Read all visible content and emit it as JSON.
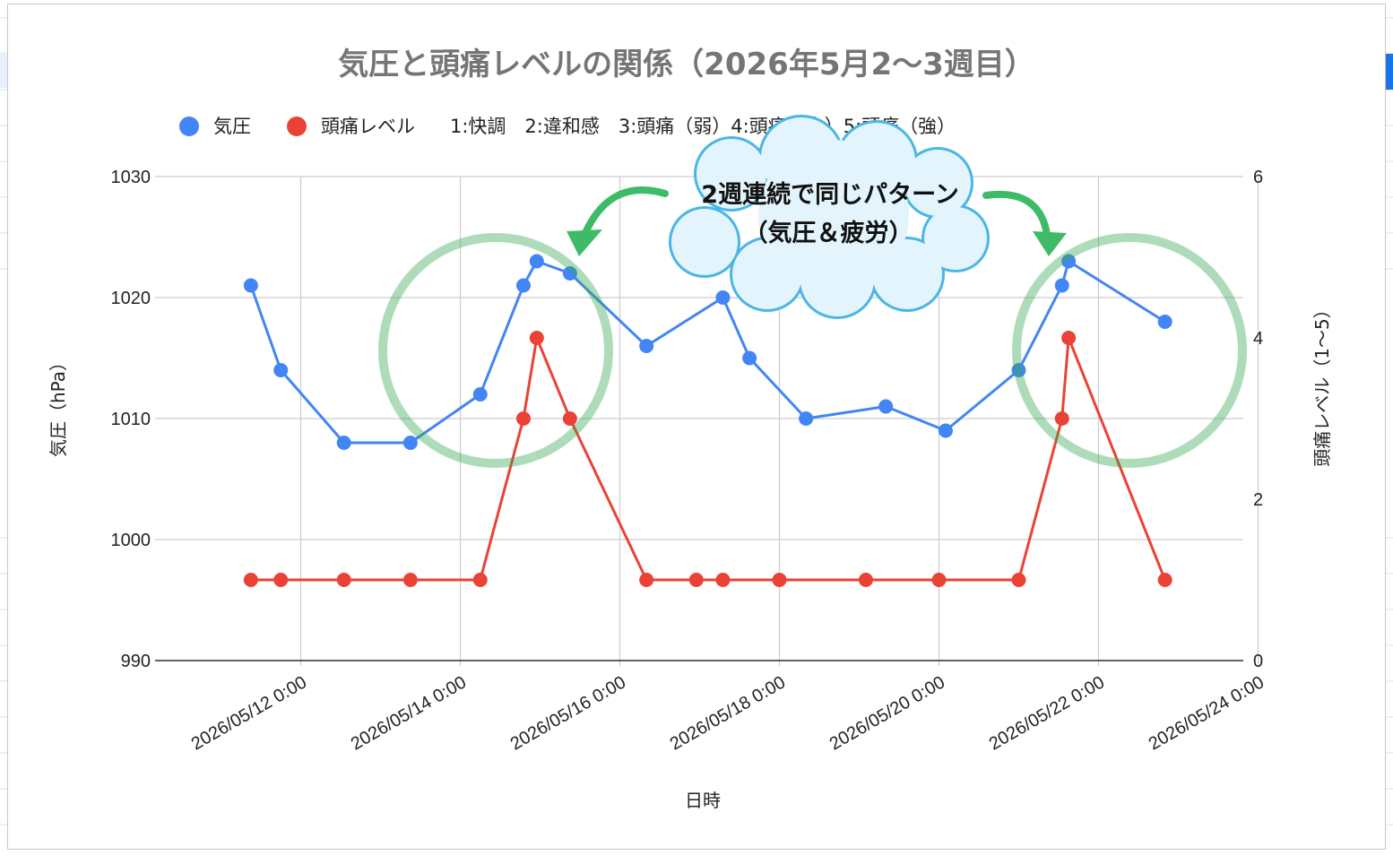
{
  "chart_data": {
    "type": "line",
    "title": "気圧と頭痛レベルの関係（2026年5月2〜3週目）",
    "xlabel": "日時",
    "ylabel_left": "気圧（hPa）",
    "ylabel_right": "頭痛レベル（1〜5）",
    "ylim_left": [
      990,
      1030
    ],
    "ylim_right": [
      0,
      6
    ],
    "left_ticks": [
      "990",
      "1000",
      "1010",
      "1020",
      "1030"
    ],
    "right_ticks": [
      "0",
      "2",
      "4",
      "6"
    ],
    "x_ticks": [
      "2026/05/12 0:00",
      "2026/05/14 0:00",
      "2026/05/16 0:00",
      "2026/05/18 0:00",
      "2026/05/20 0:00",
      "2026/05/22 0:00",
      "2026/05/24 0:00"
    ],
    "legend_position": "top",
    "grid": true,
    "series": [
      {
        "name": "気圧",
        "axis": "left",
        "color": "#4285f4",
        "points": [
          [
            "2026/05/11 9:00",
            1021
          ],
          [
            "2026/05/11 18:00",
            1014
          ],
          [
            "2026/05/12 13:00",
            1008
          ],
          [
            "2026/05/13 9:00",
            1008
          ],
          [
            "2026/05/14 6:00",
            1012
          ],
          [
            "2026/05/14 19:00",
            1021
          ],
          [
            "2026/05/14 23:00",
            1023
          ],
          [
            "2026/05/15 9:00",
            1022
          ],
          [
            "2026/05/16 8:00",
            1016
          ],
          [
            "2026/05/17 7:00",
            1020
          ],
          [
            "2026/05/17 15:00",
            1015
          ],
          [
            "2026/05/18 8:00",
            1010
          ],
          [
            "2026/05/19 8:00",
            1011
          ],
          [
            "2026/05/20 2:00",
            1009
          ],
          [
            "2026/05/21 0:00",
            1014
          ],
          [
            "2026/05/21 13:00",
            1021
          ],
          [
            "2026/05/21 15:00",
            1023
          ],
          [
            "2026/05/22 20:00",
            1018
          ]
        ]
      },
      {
        "name": "頭痛レベル",
        "axis": "right",
        "color": "#ea4335",
        "points": [
          [
            "2026/05/11 9:00",
            1
          ],
          [
            "2026/05/11 18:00",
            1
          ],
          [
            "2026/05/12 13:00",
            1
          ],
          [
            "2026/05/13 9:00",
            1
          ],
          [
            "2026/05/14 6:00",
            1
          ],
          [
            "2026/05/14 19:00",
            3
          ],
          [
            "2026/05/14 23:00",
            4
          ],
          [
            "2026/05/15 9:00",
            3
          ],
          [
            "2026/05/16 8:00",
            1
          ],
          [
            "2026/05/16 23:00",
            1
          ],
          [
            "2026/05/17 7:00",
            1
          ],
          [
            "2026/05/18 0:00",
            1
          ],
          [
            "2026/05/19 2:00",
            1
          ],
          [
            "2026/05/20 0:00",
            1
          ],
          [
            "2026/05/21 0:00",
            1
          ],
          [
            "2026/05/21 13:00",
            3
          ],
          [
            "2026/05/21 15:00",
            4
          ],
          [
            "2026/05/22 20:00",
            1
          ]
        ]
      }
    ],
    "legend_note": "1:快調　2:違和感　3:頭痛（弱）4:頭痛（中）5:頭痛（強）"
  },
  "callout": {
    "line1": "2週連続で同じパターン",
    "line2": "（気圧＆疲労）",
    "highlight_color": "#34a853",
    "arrow_color": "#3dbb67",
    "cloud_fill": "#e3f4fc",
    "cloud_stroke": "#4bb6e3"
  },
  "colors": {
    "grid": "#cccccc",
    "axis": "#333333"
  }
}
